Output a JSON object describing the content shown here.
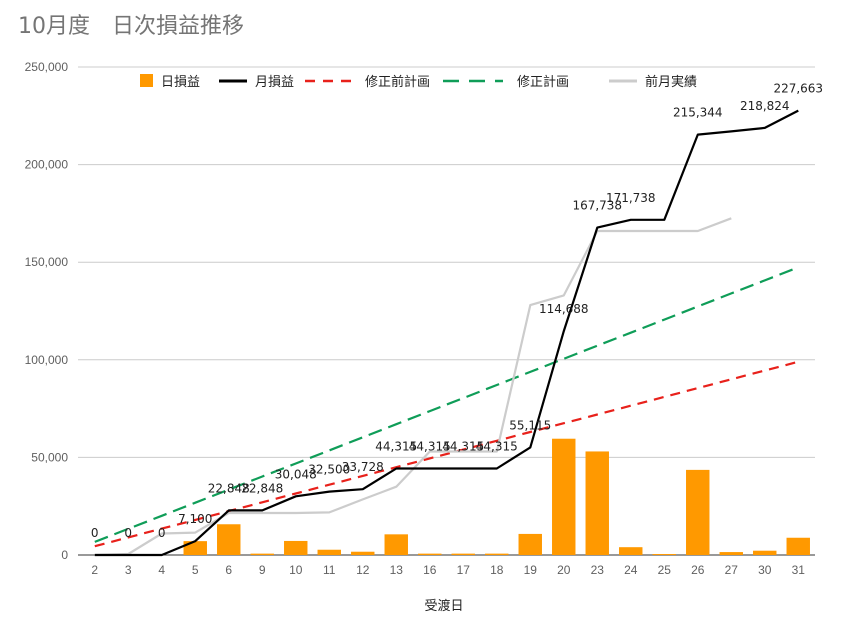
{
  "title": "10月度　日次損益推移",
  "chart_data": {
    "type": "bar",
    "xlabel": "受渡日",
    "ylabel": "",
    "ylim": [
      0,
      250000
    ],
    "yticks": [
      0,
      50000,
      100000,
      150000,
      200000,
      250000
    ],
    "ytick_labels": [
      "0",
      "50,000",
      "100,000",
      "150,000",
      "200,000",
      "250,000"
    ],
    "grid": true,
    "legend_position": "top",
    "categories": [
      "2",
      "3",
      "4",
      "5",
      "6",
      "9",
      "10",
      "11",
      "12",
      "13",
      "16",
      "17",
      "18",
      "19",
      "20",
      "23",
      "24",
      "25",
      "26",
      "27",
      "30",
      "31"
    ],
    "series": [
      {
        "name": "日損益",
        "kind": "bar",
        "color": "#ff9900",
        "values": [
          0,
          0,
          0,
          7100,
          15748,
          700,
          7200,
          2700,
          1678,
          10587,
          700,
          700,
          700,
          10800,
          59573,
          53050,
          4000,
          500,
          43606,
          1500,
          2200,
          8839
        ]
      },
      {
        "name": "月損益",
        "kind": "line",
        "color": "#000000",
        "values": [
          0,
          0,
          0,
          7100,
          22848,
          22848,
          30048,
          32500,
          33728,
          44315,
          44315,
          44315,
          44315,
          55115,
          114688,
          167738,
          171738,
          171738,
          215344,
          217000,
          218824,
          227663
        ]
      },
      {
        "name": "修正前計画",
        "kind": "dash",
        "color": "#e8211b",
        "values": [
          4500,
          9000,
          13500,
          18000,
          22500,
          27000,
          31500,
          36000,
          40500,
          45000,
          49500,
          54000,
          58500,
          63000,
          67500,
          72000,
          76500,
          81000,
          85500,
          90000,
          94500,
          99000
        ]
      },
      {
        "name": "修正計画",
        "kind": "dash",
        "color": "#0f9d58",
        "values": [
          6700,
          13400,
          20100,
          26800,
          33500,
          40200,
          46900,
          53600,
          60300,
          67000,
          73700,
          80400,
          87100,
          93800,
          100500,
          107200,
          113900,
          120600,
          127300,
          134000,
          140700,
          147400
        ]
      },
      {
        "name": "前月実績",
        "kind": "line",
        "color": "#cccccc",
        "values": [
          0,
          500,
          11000,
          11500,
          21500,
          21500,
          21500,
          21800,
          28500,
          35000,
          53000,
          53000,
          53000,
          128000,
          133000,
          166000,
          166000,
          166000,
          166000,
          172500,
          null,
          null
        ]
      }
    ],
    "data_labels": {
      "series": "月損益",
      "values": [
        "0",
        "0",
        "0",
        "7,100",
        "22,848",
        "22,848",
        "30,048",
        "32,500",
        "33,728",
        "44,315",
        "44,315",
        "44,315",
        "44,315",
        "55,115",
        "114,688",
        "167,738",
        "171,738",
        "",
        "215,344",
        "",
        "218,824",
        "227,663"
      ]
    }
  }
}
